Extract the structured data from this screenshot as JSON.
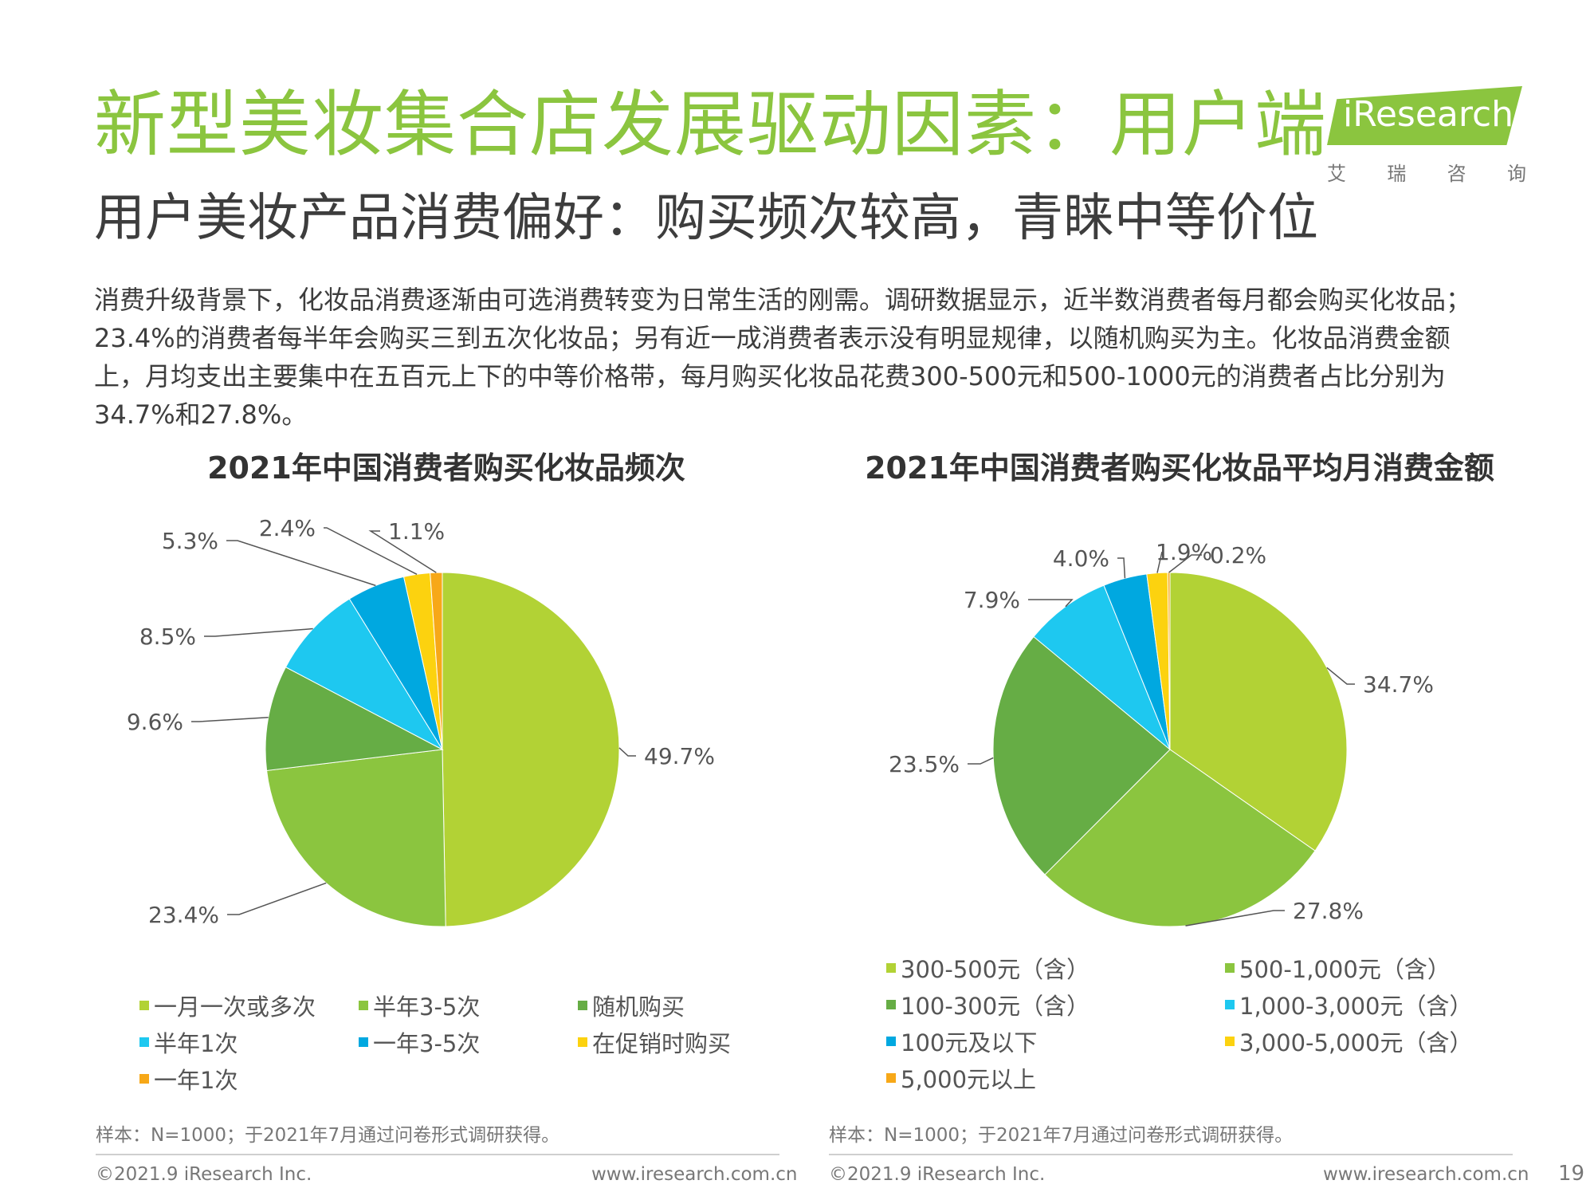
{
  "title": "新型美妆集合店发展驱动因素：用户端",
  "subtitle": "用户美妆产品消费偏好：购买频次较高，青睐中等价位",
  "logo": {
    "word": "iResearch",
    "sub": [
      "艾",
      "瑞",
      "咨",
      "询"
    ]
  },
  "body_lines": [
    "消费升级背景下，化妆品消费逐渐由可选消费转变为日常生活的刚需。调研数据显示，近半数消费者每月都会购买化妆品；",
    "23.4%的消费者每半年会购买三到五次化妆品；另有近一成消费者表示没有明显规律，以随机购买为主。化妆品消费金额",
    "上，月均支出主要集中在五百元上下的中等价格带，每月购买化妆品花费300-500元和500-1000元的消费者占比分别为",
    "34.7%和27.8%。"
  ],
  "chart_data": [
    {
      "type": "pie",
      "title": "2021年中国消费者购买化妆品频次",
      "labels": [
        "一月一次或多次",
        "半年3-5次",
        "随机购买",
        "半年1次",
        "一年3-5次",
        "在促销时购买",
        "一年1次"
      ],
      "values": [
        49.7,
        23.4,
        9.6,
        8.5,
        5.3,
        2.4,
        1.1
      ],
      "value_labels": [
        "49.7%",
        "23.4%",
        "9.6%",
        "8.5%",
        "5.3%",
        "2.4%",
        "1.1%"
      ],
      "colors": [
        "#b2d235",
        "#8bc53f",
        "#66ad45",
        "#1ec8f0",
        "#00a8e0",
        "#fcd20f",
        "#f7a818"
      ],
      "legend_position": "bottom"
    },
    {
      "type": "pie",
      "title": "2021年中国消费者购买化妆品平均月消费金额",
      "labels": [
        "300-500元（含）",
        "500-1,000元（含）",
        "100-300元（含）",
        "1,000-3,000元（含）",
        "100元及以下",
        "3,000-5,000元（含）",
        "5,000元以上"
      ],
      "values": [
        34.7,
        27.8,
        23.5,
        7.9,
        4.0,
        1.9,
        0.2
      ],
      "value_labels": [
        "34.7%",
        "27.8%",
        "23.5%",
        "7.9%",
        "4.0%",
        "1.9%",
        "0.2%"
      ],
      "colors": [
        "#b2d235",
        "#8bc53f",
        "#66ad45",
        "#1ec8f0",
        "#00a8e0",
        "#fcd20f",
        "#f7a818"
      ],
      "legend_position": "bottom"
    }
  ],
  "notes": {
    "left": "样本：N=1000；于2021年7月通过问卷形式调研获得。",
    "right": "样本：N=1000；于2021年7月通过问卷形式调研获得。"
  },
  "footer": {
    "left_copyright": "©2021.9 iResearch Inc.",
    "left_url": "www.iresearch.com.cn",
    "right_copyright": "©2021.9 iResearch Inc.",
    "right_url": "www.iresearch.com.cn",
    "page_number": "19"
  }
}
